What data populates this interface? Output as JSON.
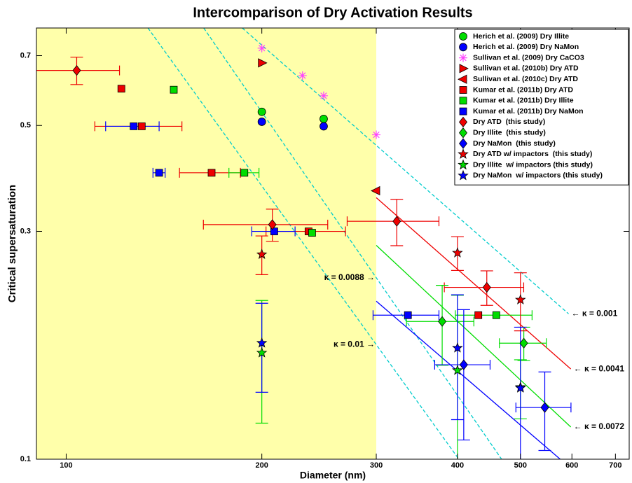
{
  "chart_data": {
    "type": "scatter",
    "title": "Intercomparison of Dry Activation Results",
    "x_label": "Diameter (nm)",
    "y_label": "Critical supersaturation",
    "xscale": "log",
    "yscale": "log",
    "xlim": [
      90,
      735
    ],
    "ylim": [
      0.1,
      0.8
    ],
    "xticks": [
      100,
      200,
      300,
      400,
      500,
      600,
      700
    ],
    "yticks": [
      0.1,
      0.3,
      0.5,
      0.7
    ],
    "legend": "upper right",
    "shaded_region": {
      "xmax": 300,
      "color": "#ffffaa"
    },
    "series": [
      {
        "name": "Herich et al. (2009) Dry Illite",
        "color": "#00dd00",
        "marker": "circle",
        "x": [
          200,
          249
        ],
        "y": [
          0.534,
          0.516
        ],
        "xerr": [
          null,
          null
        ],
        "yerr": [
          null,
          null
        ]
      },
      {
        "name": "Herich et al. (2009) Dry NaMon",
        "color": "#0000ff",
        "marker": "circle",
        "x": [
          200,
          249
        ],
        "y": [
          0.509,
          0.498
        ],
        "xerr": [
          null,
          null
        ],
        "yerr": [
          null,
          null
        ]
      },
      {
        "name": "Sullivan et al. (2009) Dry CaCO3",
        "color": "#ff44ff",
        "marker": "asterisk",
        "x": [
          200,
          231,
          249,
          300
        ],
        "y": [
          0.726,
          0.636,
          0.577,
          0.478
        ],
        "xerr": [
          null,
          null,
          null,
          null
        ],
        "yerr": [
          null,
          null,
          null,
          null
        ]
      },
      {
        "name": "Sullivan et al. (2010b) Dry ATD",
        "color": "#ee0000",
        "marker": "triangle-right",
        "x": [
          200
        ],
        "y": [
          0.676
        ],
        "xerr": [
          null
        ],
        "yerr": [
          null
        ]
      },
      {
        "name": "Sullivan et al. (2010c) Dry ATD",
        "color": "#ee0000",
        "marker": "triangle-left",
        "x": [
          300
        ],
        "y": [
          0.365
        ],
        "xerr": [
          null
        ],
        "yerr": [
          null
        ]
      },
      {
        "name": "Kumar et al. (2011b) Dry ATD",
        "color": "#ee0000",
        "marker": "square",
        "x": [
          121.6,
          130.7,
          167.4,
          236,
          430.7
        ],
        "y": [
          0.597,
          0.498,
          0.398,
          0.3,
          0.2003
        ],
        "xerr": [
          null,
          20,
          18,
          33,
          null
        ],
        "yerr": [
          null,
          null,
          null,
          null,
          null
        ]
      },
      {
        "name": "Kumar et al. (2011b) Dry Illite",
        "color": "#00dd00",
        "marker": "square",
        "x": [
          146.4,
          188,
          239,
          459
        ],
        "y": [
          0.594,
          0.398,
          0.298,
          0.2003
        ],
        "xerr": [
          null,
          10,
          null,
          62
        ],
        "yerr": [
          null,
          null,
          null,
          null
        ]
      },
      {
        "name": "Kumar et al. (2011b) Dry NaMon",
        "color": "#0000ff",
        "marker": "square",
        "x": [
          127,
          139,
          209,
          335.6
        ],
        "y": [
          0.498,
          0.398,
          0.3,
          0.2003
        ],
        "xerr": [
          12,
          3,
          16,
          39
        ],
        "yerr": [
          null,
          null,
          null,
          null
        ]
      },
      {
        "name": "Dry ATD  (this study)",
        "color": "#ee0000",
        "marker": "diamond",
        "x": [
          103.8,
          207.6,
          322.6,
          443.8
        ],
        "y": [
          0.652,
          0.31,
          0.315,
          0.229
        ],
        "xerr": [
          17,
          45,
          52,
          62
        ],
        "yerr": [
          0.043,
          0.024,
          0.035,
          0.019
        ]
      },
      {
        "name": "Dry Illite  (this study)",
        "color": "#00dd00",
        "marker": "diamond",
        "x": [
          378.9,
          506
        ],
        "y": [
          0.1943,
          0.175
        ],
        "xerr": [
          45,
          42
        ],
        "yerr": [
          0.037,
          0.014
        ]
      },
      {
        "name": "Dry NaMon  (this study)",
        "color": "#0000ff",
        "marker": "diamond",
        "x": [
          409,
          545
        ],
        "y": [
          0.1577,
          0.1283
        ],
        "xerr": [
          40,
          53
        ],
        "yerr": [
          0.048,
          0.024
        ]
      },
      {
        "name": "Dry ATD w/ impactors  (this study)",
        "color": "#ee0000",
        "marker": "star",
        "x": [
          200,
          400,
          500
        ],
        "y": [
          0.2685,
          0.2705,
          0.2157
        ],
        "xerr": [
          null,
          null,
          null
        ],
        "yerr": [
          0.025,
          0.022,
          0.03
        ]
      },
      {
        "name": "Dry Illite  w/ impactors (this study)",
        "color": "#00dd00",
        "marker": "star",
        "x": [
          200,
          400,
          500
        ],
        "y": [
          0.167,
          0.1535,
          0.1415
        ],
        "xerr": [
          null,
          null,
          null
        ],
        "yerr": [
          0.048,
          0.067,
          0.02
        ]
      },
      {
        "name": "Dry NaMon  w/ impactors (this study)",
        "color": "#0000ff",
        "marker": "star",
        "x": [
          200,
          400,
          500
        ],
        "y": [
          0.1751,
          0.171,
          0.141
        ],
        "xerr": [
          null,
          null,
          null
        ],
        "yerr": [
          0.037,
          0.05,
          0.048
        ]
      }
    ],
    "lines": [
      {
        "label": "← κ = 0.001",
        "color": "#00cccc",
        "style": "dashed",
        "x": [
          186.6,
          593
        ],
        "y": [
          0.8,
          0.2016
        ]
      },
      {
        "label": "κ = 0.0088 →",
        "color": "#00cccc",
        "style": "dashed",
        "x": [
          162.8,
          467.7
        ],
        "y": [
          0.8,
          0.1
        ]
      },
      {
        "label": "κ = 0.01 →",
        "color": "#00cccc",
        "style": "dashed",
        "x": [
          133.6,
          402
        ],
        "y": [
          0.8,
          0.1
        ]
      },
      {
        "label": "← κ = 0.0041",
        "color": "#ee0000",
        "style": "solid",
        "x": [
          300,
          597.6
        ],
        "y": [
          0.353,
          0.1545
        ]
      },
      {
        "label": "← κ = 0.0072",
        "color": "#00dd00",
        "style": "solid",
        "x": [
          300,
          597.6
        ],
        "y": [
          0.2805,
          0.1168
        ]
      },
      {
        "color": "#0000ff",
        "style": "solid",
        "x": [
          300,
          575.6
        ],
        "y": [
          0.2143,
          0.1
        ]
      }
    ]
  }
}
